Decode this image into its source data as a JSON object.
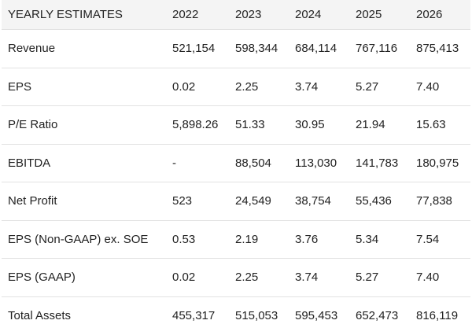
{
  "table": {
    "header": {
      "title": "YEARLY ESTIMATES",
      "years": [
        "2022",
        "2023",
        "2024",
        "2025",
        "2026"
      ]
    },
    "rows": [
      {
        "label": "Revenue",
        "values": [
          "521,154",
          "598,344",
          "684,114",
          "767,116",
          "875,413"
        ]
      },
      {
        "label": "EPS",
        "values": [
          "0.02",
          "2.25",
          "3.74",
          "5.27",
          "7.40"
        ]
      },
      {
        "label": "P/E Ratio",
        "values": [
          "5,898.26",
          "51.33",
          "30.95",
          "21.94",
          "15.63"
        ]
      },
      {
        "label": "EBITDA",
        "values": [
          "-",
          "88,504",
          "113,030",
          "141,783",
          "180,975"
        ]
      },
      {
        "label": "Net Profit",
        "values": [
          "523",
          "24,549",
          "38,754",
          "55,436",
          "77,838"
        ]
      },
      {
        "label": "EPS (Non-GAAP) ex. SOE",
        "values": [
          "0.53",
          "2.19",
          "3.76",
          "5.34",
          "7.54"
        ]
      },
      {
        "label": "EPS (GAAP)",
        "values": [
          "0.02",
          "2.25",
          "3.74",
          "5.27",
          "7.40"
        ]
      },
      {
        "label": "Total Assets",
        "values": [
          "455,317",
          "515,053",
          "595,453",
          "652,473",
          "816,119"
        ]
      }
    ]
  }
}
